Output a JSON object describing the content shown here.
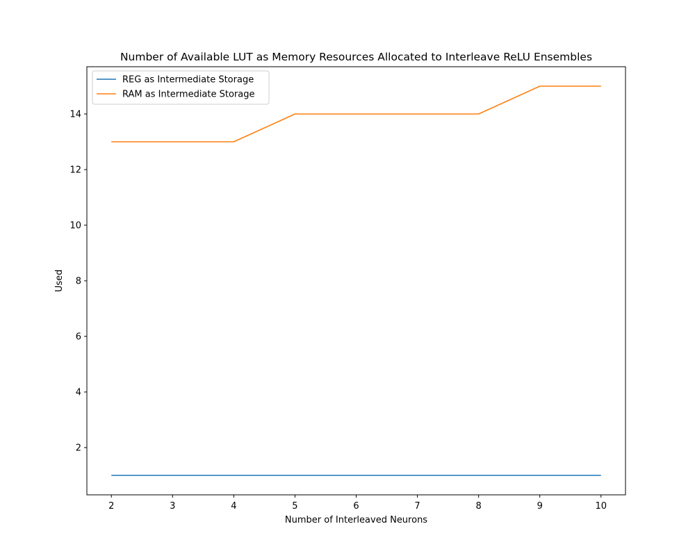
{
  "chart_data": {
    "type": "line",
    "title": "Number of Available LUT as Memory Resources Allocated to Interleave ReLU Ensembles",
    "xlabel": "Number of Interleaved Neurons",
    "ylabel": "Used",
    "x": [
      2,
      3,
      4,
      5,
      6,
      7,
      8,
      9,
      10
    ],
    "xticks": [
      2,
      3,
      4,
      5,
      6,
      7,
      8,
      9,
      10
    ],
    "yticks": [
      2,
      4,
      6,
      8,
      10,
      12,
      14
    ],
    "xlim": [
      1.6,
      10.4
    ],
    "ylim": [
      0.3,
      15.7
    ],
    "grid": false,
    "legend_position": "upper-left",
    "series": [
      {
        "name": "REG as Intermediate Storage",
        "color": "#1f77b4",
        "values": [
          1,
          1,
          1,
          1,
          1,
          1,
          1,
          1,
          1
        ]
      },
      {
        "name": "RAM as Intermediate Storage",
        "color": "#ff7f0e",
        "values": [
          13,
          13,
          13,
          14,
          14,
          14,
          14,
          15,
          15
        ]
      }
    ]
  }
}
